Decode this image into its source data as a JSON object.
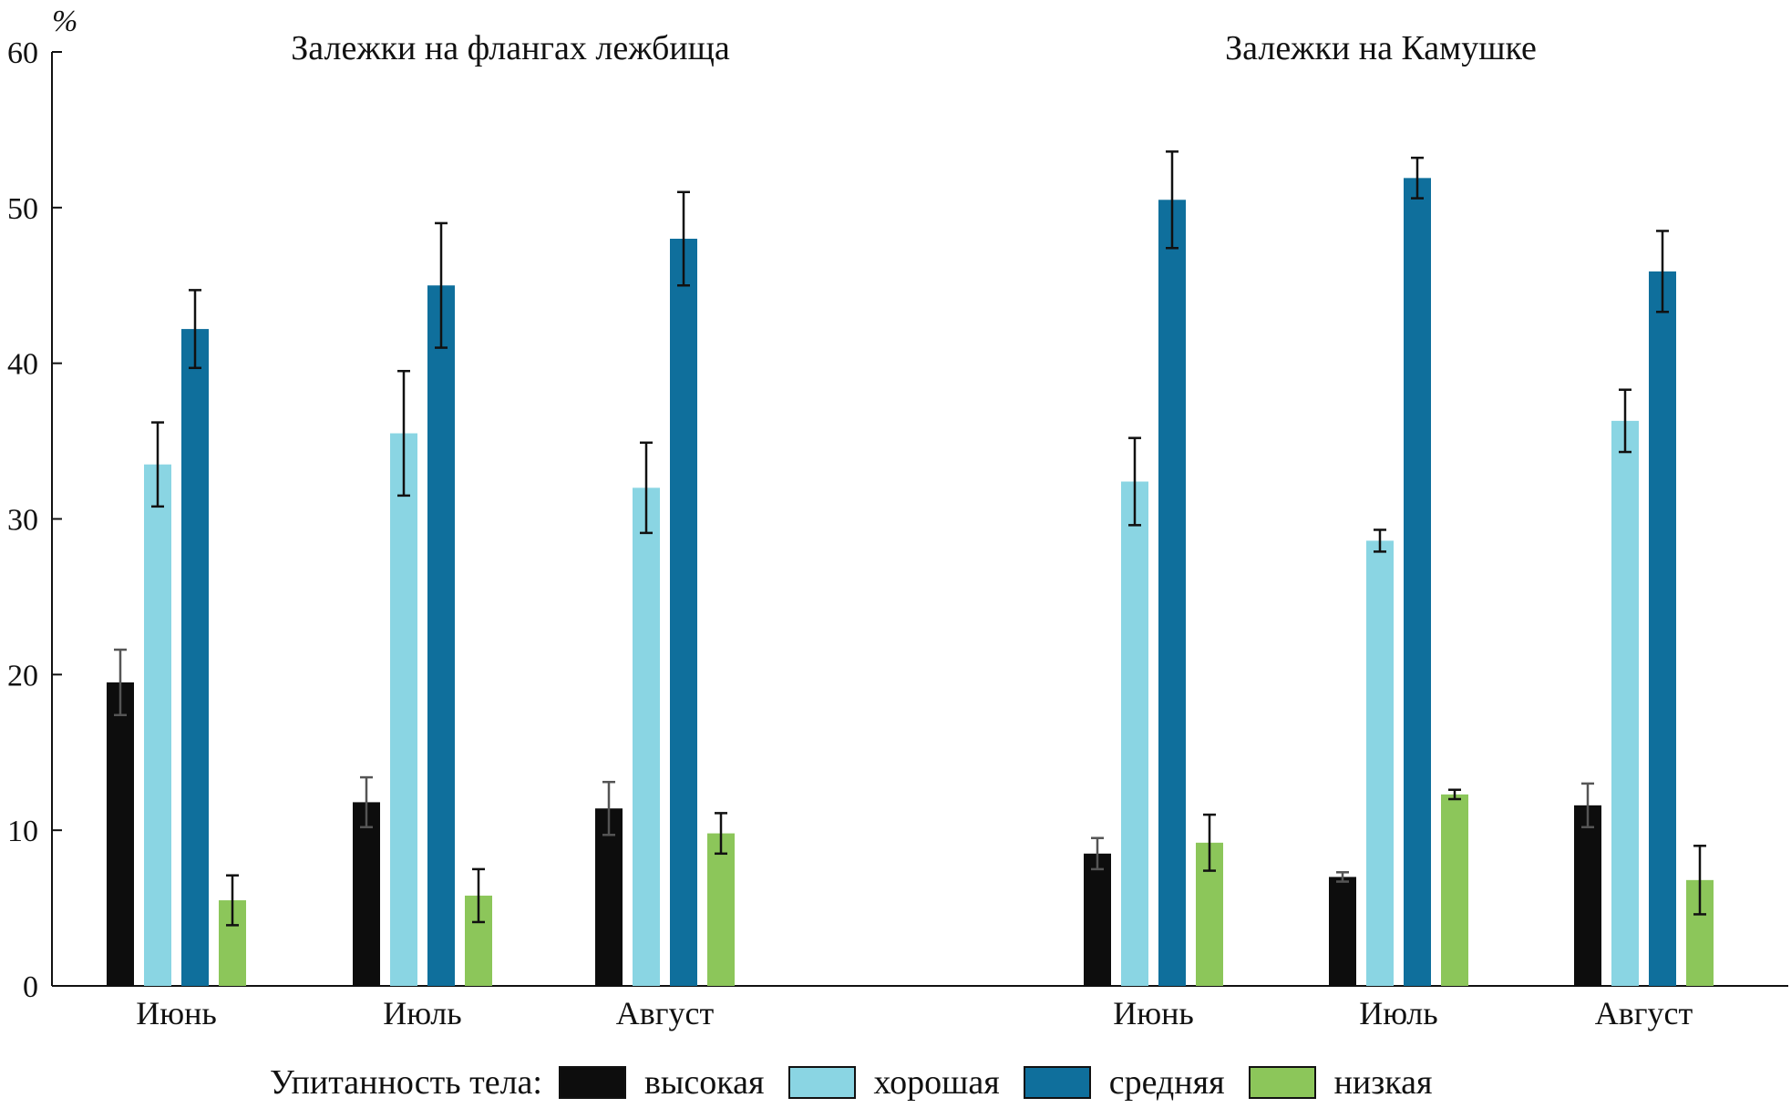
{
  "chart_data": {
    "type": "bar",
    "unit_label": "%",
    "ylim": [
      0,
      60
    ],
    "yticks": [
      0,
      10,
      20,
      30,
      40,
      50,
      60
    ],
    "legend_title": "Упитанность тела:",
    "series": [
      {
        "name": "высокая",
        "color": "#0d0d0d"
      },
      {
        "name": "хорошая",
        "color": "#8ad5e3"
      },
      {
        "name": "средняя",
        "color": "#0f6f9c"
      },
      {
        "name": "низкая",
        "color": "#8cc65a"
      }
    ],
    "panels": [
      {
        "title": "Залежки на флангах лежбища",
        "categories": [
          "Июнь",
          "Июль",
          "Август"
        ],
        "values": [
          [
            19.5,
            33.5,
            42.2,
            5.5
          ],
          [
            11.8,
            35.5,
            45.0,
            5.8
          ],
          [
            11.4,
            32.0,
            48.0,
            9.8
          ]
        ],
        "errors": [
          [
            2.1,
            2.7,
            2.5,
            1.6
          ],
          [
            1.6,
            4.0,
            4.0,
            1.7
          ],
          [
            1.7,
            2.9,
            3.0,
            1.3
          ]
        ]
      },
      {
        "title": "Залежки на Камушке",
        "categories": [
          "Июнь",
          "Июль",
          "Август"
        ],
        "values": [
          [
            8.5,
            32.4,
            50.5,
            9.2
          ],
          [
            7.0,
            28.6,
            51.9,
            12.3
          ],
          [
            11.6,
            36.3,
            45.9,
            6.8
          ]
        ],
        "errors": [
          [
            1.0,
            2.8,
            3.1,
            1.8
          ],
          [
            0.3,
            0.7,
            1.3,
            0.3
          ],
          [
            1.4,
            2.0,
            2.6,
            2.2
          ]
        ]
      }
    ]
  }
}
